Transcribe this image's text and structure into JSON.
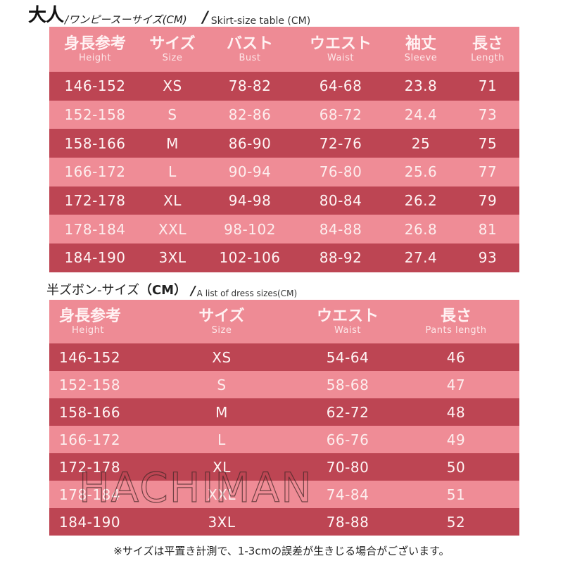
{
  "section1": {
    "title_big": "大人",
    "title_jp": "/ワンピースーサイズ(CM)",
    "title_slash": "/",
    "title_en": "Skirt-size table (CM)",
    "headers": [
      {
        "jp": "身長参考",
        "en": "Height"
      },
      {
        "jp": "サイズ",
        "en": "Size"
      },
      {
        "jp": "バスト",
        "en": "Bust"
      },
      {
        "jp": "ウエスト",
        "en": "Waist"
      },
      {
        "jp": "袖丈",
        "en": "Sleeve"
      },
      {
        "jp": "長さ",
        "en": "Length"
      }
    ],
    "rows": [
      [
        "146-152",
        "XS",
        "78-82",
        "64-68",
        "23.8",
        "71"
      ],
      [
        "152-158",
        "S",
        "82-86",
        "68-72",
        "24.4",
        "73"
      ],
      [
        "158-166",
        "M",
        "86-90",
        "72-76",
        "25",
        "75"
      ],
      [
        "166-172",
        "L",
        "90-94",
        "76-80",
        "25.6",
        "77"
      ],
      [
        "172-178",
        "XL",
        "94-98",
        "80-84",
        "26.2",
        "79"
      ],
      [
        "178-184",
        "XXL",
        "98-102",
        "84-88",
        "26.8",
        "81"
      ],
      [
        "184-190",
        "3XL",
        "102-106",
        "88-92",
        "27.4",
        "93"
      ]
    ]
  },
  "section2": {
    "title_jp": "半ズボン-サイズ",
    "title_cm": "（CM）",
    "title_slash": "/",
    "title_en": "A list of dress sizes(CM)",
    "headers": [
      {
        "jp": "身長参考",
        "en": "Height"
      },
      {
        "jp": "サイズ",
        "en": "Size"
      },
      {
        "jp": "ウエスト",
        "en": "Waist"
      },
      {
        "jp": "長さ",
        "en": "Pants length"
      }
    ],
    "rows": [
      [
        "146-152",
        "XS",
        "54-64",
        "46"
      ],
      [
        "152-158",
        "S",
        "58-68",
        "47"
      ],
      [
        "158-166",
        "M",
        "62-72",
        "48"
      ],
      [
        "166-172",
        "L",
        "66-76",
        "49"
      ],
      [
        "172-178",
        "XL",
        "70-80",
        "50"
      ],
      [
        "178-184",
        "XXL",
        "74-84",
        "51"
      ],
      [
        "184-190",
        "3XL",
        "78-88",
        "52"
      ]
    ]
  },
  "watermark": "HACHIMAN",
  "footnote": "※サイズは平置き計測で、1-3cmの誤差が生きじる場合がございます。",
  "colors": {
    "header": "#ee8b95",
    "row_dark": "#bd4553",
    "row_light": "#ef8c96",
    "text_on_table": "#ffffff"
  }
}
